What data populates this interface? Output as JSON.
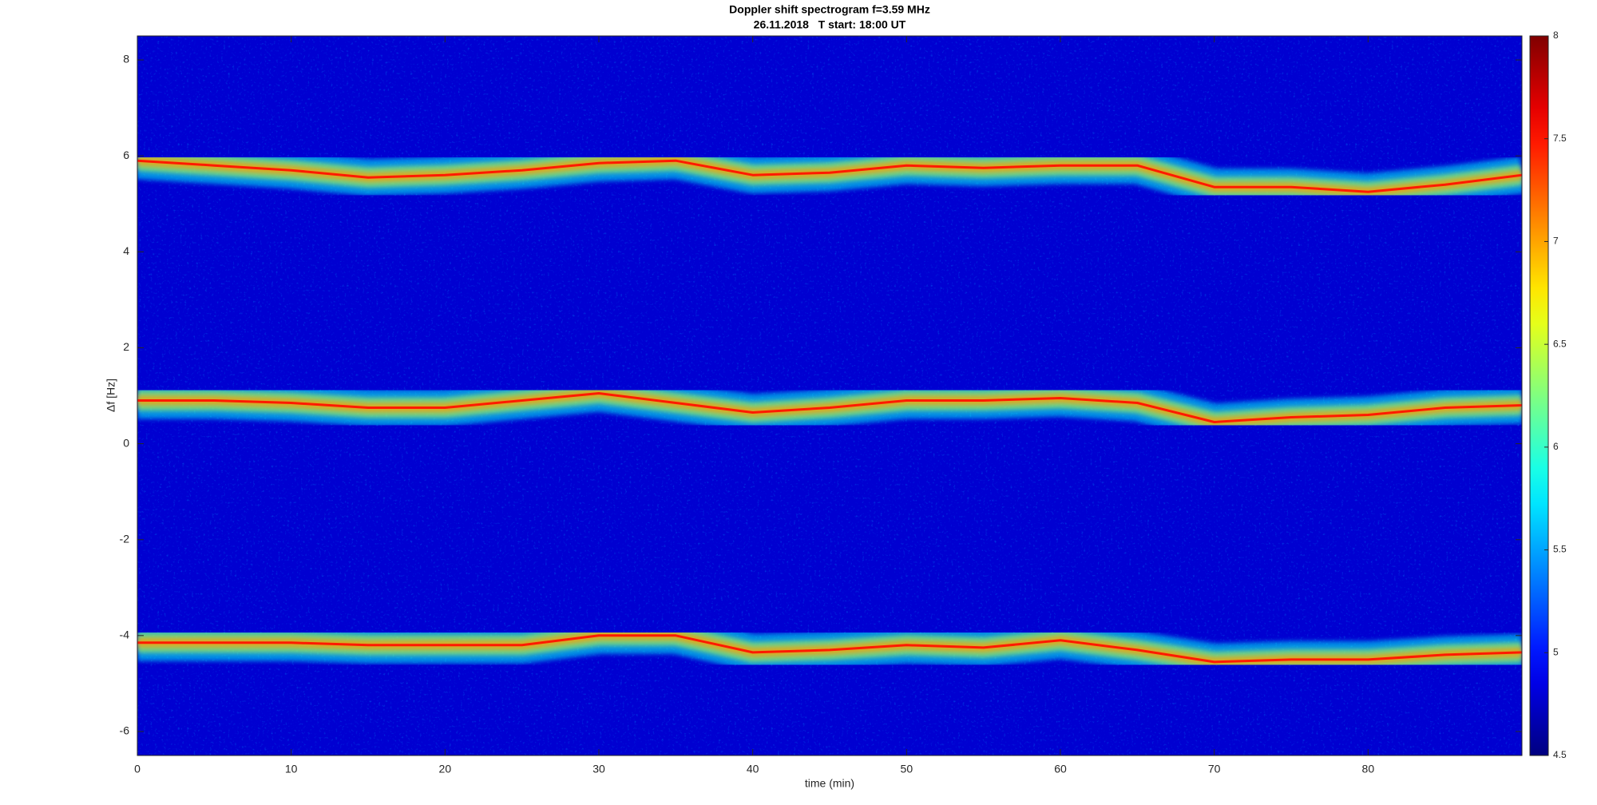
{
  "chart_data": {
    "type": "spectrogram",
    "title": "Doppler shift spectrogram f=3.59 MHz",
    "subtitle": "26.11.2018   T start: 18:00 UT",
    "x_label": "time (min)",
    "y_label": "Δf [Hz]",
    "x": [
      0,
      5,
      10,
      15,
      20,
      25,
      30,
      35,
      40,
      45,
      50,
      55,
      60,
      65,
      70,
      75,
      80,
      85,
      90
    ],
    "series": [
      {
        "color": "#ff1a00",
        "values": [
          5.9,
          5.8,
          5.7,
          5.55,
          5.6,
          5.7,
          5.85,
          5.9,
          5.6,
          5.65,
          5.8,
          5.75,
          5.8,
          5.8,
          5.35,
          5.35,
          5.25,
          5.4,
          5.6
        ]
      },
      {
        "color": "#ff1a00",
        "values": [
          0.9,
          0.9,
          0.85,
          0.75,
          0.75,
          0.9,
          1.05,
          0.85,
          0.65,
          0.75,
          0.9,
          0.9,
          0.95,
          0.85,
          0.45,
          0.55,
          0.6,
          0.75,
          0.8
        ]
      },
      {
        "color": "#ff1a00",
        "values": [
          -4.15,
          -4.15,
          -4.15,
          -4.2,
          -4.2,
          -4.2,
          -4.0,
          -4.0,
          -4.35,
          -4.3,
          -4.2,
          -4.25,
          -4.1,
          -4.3,
          -4.55,
          -4.5,
          -4.5,
          -4.4,
          -4.35
        ]
      }
    ],
    "xlim": [
      0,
      90
    ],
    "xticks": [
      0,
      10,
      20,
      30,
      40,
      50,
      60,
      70,
      80
    ],
    "ylim": [
      -6.5,
      8.5
    ],
    "yticks": [
      -6,
      -4,
      -2,
      0,
      2,
      4,
      6,
      8
    ],
    "colormap": "jet",
    "clim": [
      4.5,
      8
    ],
    "cticks": [
      4.5,
      5,
      5.5,
      6,
      6.5,
      7,
      7.5,
      8
    ],
    "grid": false
  }
}
